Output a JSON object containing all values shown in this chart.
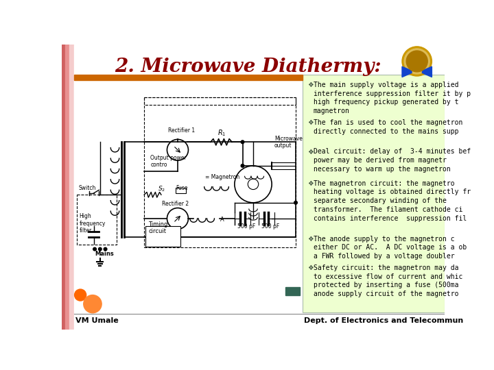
{
  "title": "2. Microwave Diathermy:",
  "title_color": "#8B0000",
  "title_fontsize": 20,
  "slide_bg": "#FFFFFF",
  "orange_bar_color": "#CC6600",
  "right_panel_bg": "#EEFFD0",
  "right_panel_border": "#BBCC99",
  "bullet_points": [
    "The main supply voltage is a applied\ninterference suppression filter it by p\nhigh frequency pickup generated by t\nmagnetron",
    "The fan is used to cool the magnetron\ndirectly connected to the mains supp",
    "Deal circuit: delay of  3-4 minutes bef\npower may be derived from magnetr\nnecessary to warm up the magnetron",
    "The magnetron circuit: the magnetro\nheating voltage is obtained directly fr\nseparate secondary winding of the\ntransformer.  The filament cathode ci\ncontains interference  suppression fil",
    "The anode supply to the magnetron c\neither DC or AC.  A DC voltage is a ob\na FWR followed by a voltage doubler",
    "Safety circuit: the magnetron may da\nto excessive flow of current and whic\nprotected by inserting a fuse (500ma\nanode supply circuit of the magnetro"
  ],
  "bullet_color": "#000000",
  "bullet_fontsize": 7.0,
  "footer_left": "VM Umale",
  "footer_right": "Dept. of Electronics and Telecommun",
  "footer_color": "#000000",
  "footer_fontsize": 8,
  "pink_strip1": "#F5CCCC",
  "pink_strip2": "#EEB0B0",
  "pink_strip3": "#E08080",
  "orange_blob1": "#FF6600",
  "orange_blob2": "#FF8833",
  "nav_rect_color": "#336655",
  "logo_outer": "#CC9900",
  "logo_inner": "#DDBB55"
}
